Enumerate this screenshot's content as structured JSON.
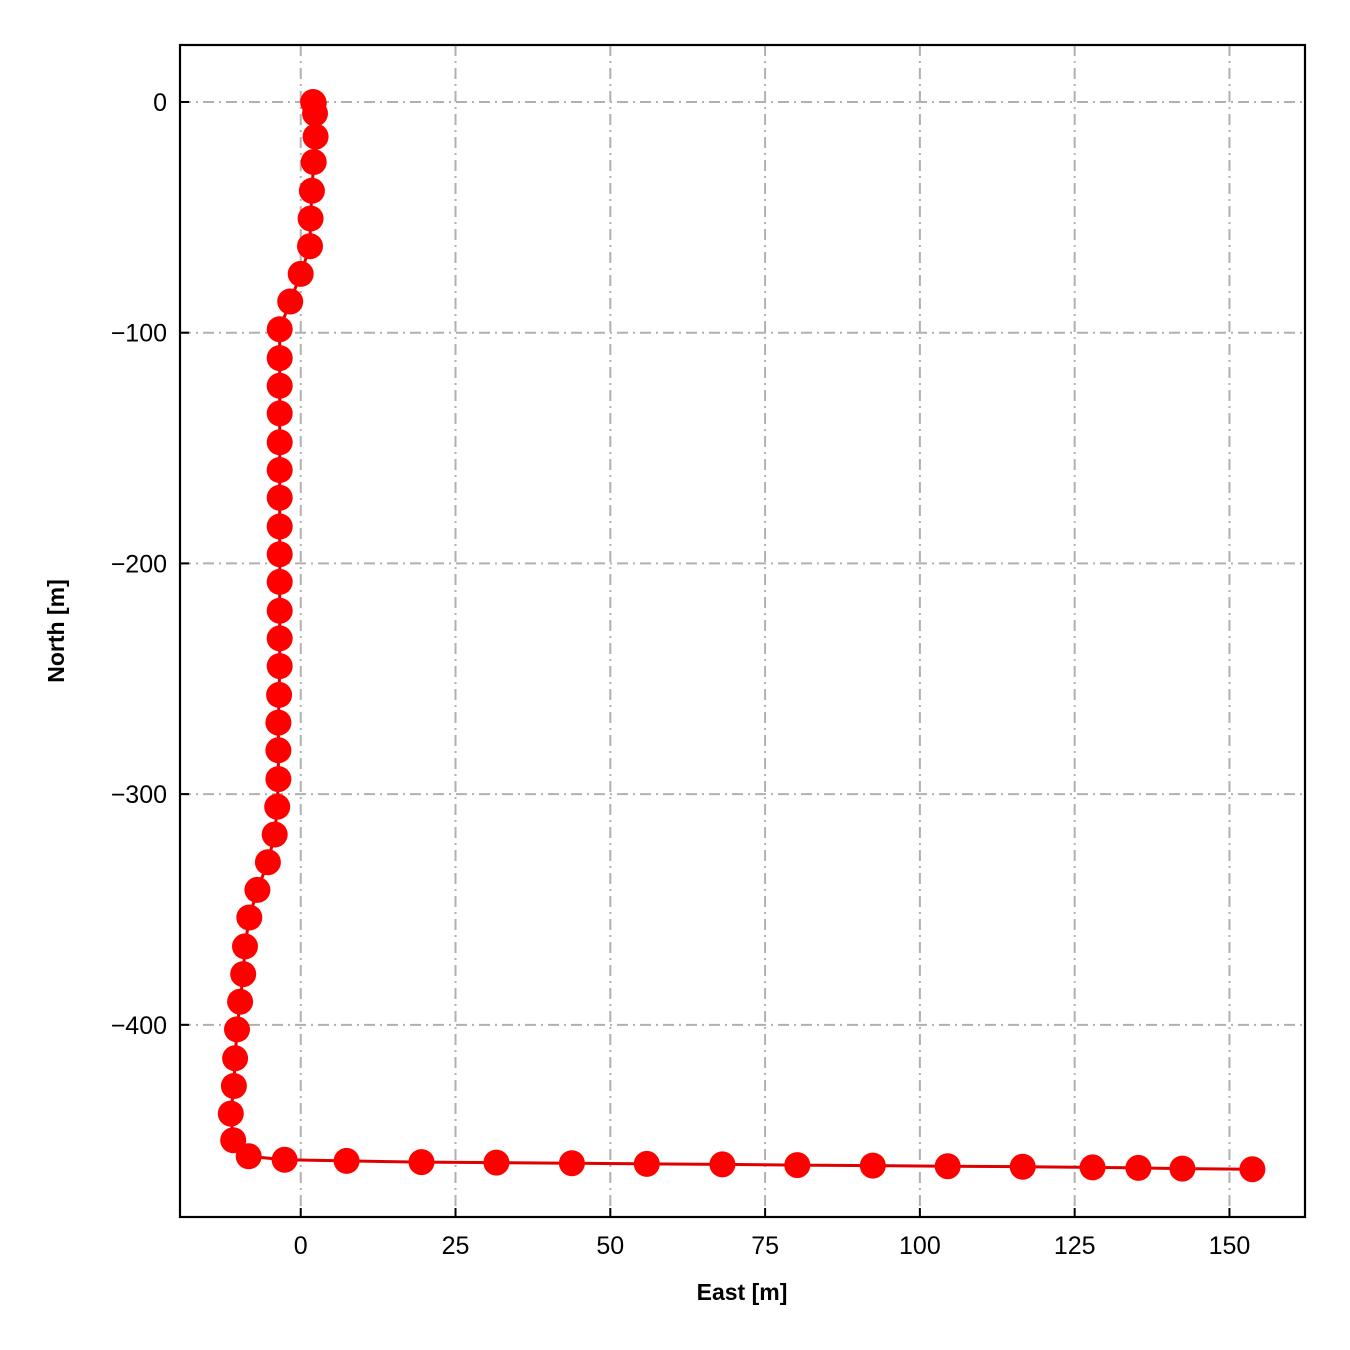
{
  "chart_data": {
    "type": "line",
    "title": "",
    "xlabel": "East [m]",
    "ylabel": "North [m]",
    "xlim": [
      -19.5,
      162.2
    ],
    "ylim": [
      -483.3,
      24.7
    ],
    "xticks": [
      0,
      25,
      50,
      75,
      100,
      125,
      150
    ],
    "xtick_labels": [
      "0",
      "25",
      "50",
      "75",
      "100",
      "125",
      "150"
    ],
    "yticks": [
      0,
      -100,
      -200,
      -300,
      -400
    ],
    "ytick_labels": [
      "0",
      "−100",
      "−200",
      "−300",
      "−400"
    ],
    "grid": true,
    "grid_style": "dash-dot",
    "legend": false,
    "colors": {
      "series": "#ff0000",
      "line": "#e00000",
      "grid": "#b0b0b0",
      "axes": "#000000"
    },
    "series": [
      {
        "marker": "circle",
        "x": [
          2.0,
          2.1,
          2.3,
          2.4,
          2.1,
          1.8,
          1.6,
          1.5,
          0.0,
          -1.7,
          -3.4,
          -3.4,
          -3.4,
          -3.4,
          -3.4,
          -3.4,
          -3.4,
          -3.4,
          -3.4,
          -3.4,
          -3.4,
          -3.4,
          -3.4,
          -3.5,
          -3.6,
          -3.6,
          -3.6,
          -3.8,
          -4.2,
          -5.3,
          -7.0,
          -8.3,
          -9.0,
          -9.3,
          -9.8,
          -10.3,
          -10.6,
          -10.8,
          -11.3,
          -10.9,
          -8.4,
          -2.6,
          7.4,
          19.5,
          31.6,
          43.8,
          55.9,
          68.1,
          80.2,
          92.4,
          104.5,
          116.6,
          127.9,
          135.3,
          142.4,
          153.7
        ],
        "y": [
          0.0,
          -0.5,
          -5.0,
          -15.0,
          -26.0,
          -38.5,
          -50.5,
          -62.5,
          -74.5,
          -86.5,
          -98.5,
          -111.0,
          -123.0,
          -135.0,
          -147.5,
          -159.5,
          -171.5,
          -184.0,
          -196.0,
          -208.0,
          -220.5,
          -232.5,
          -244.5,
          -257.0,
          -269.0,
          -281.0,
          -293.5,
          -305.5,
          -317.5,
          -329.5,
          -341.5,
          -353.5,
          -366.0,
          -378.0,
          -390.0,
          -402.0,
          -414.5,
          -426.5,
          -438.5,
          -450.0,
          -457.0,
          -458.5,
          -459.0,
          -459.5,
          -459.7,
          -460.0,
          -460.3,
          -460.5,
          -460.8,
          -461.0,
          -461.3,
          -461.5,
          -461.8,
          -462.0,
          -462.3,
          -462.6
        ]
      }
    ]
  }
}
